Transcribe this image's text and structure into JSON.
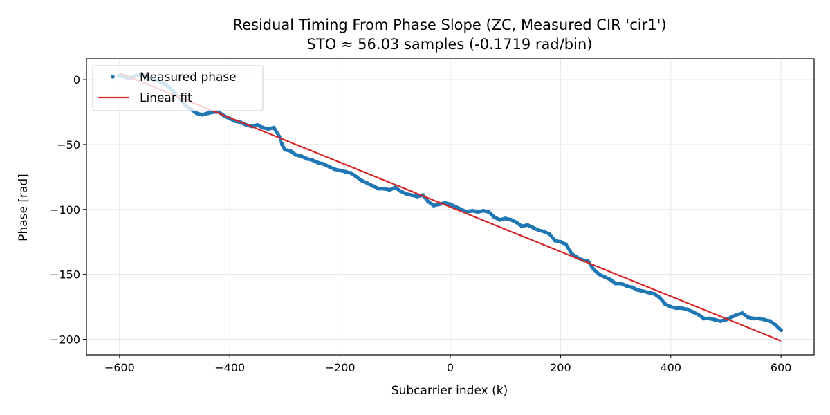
{
  "chart_data": {
    "type": "line",
    "title": "Residual Timing From Phase Slope (ZC, Measured CIR 'cir1')",
    "subtitle": "STO ≈ 56.03 samples (-0.1719 rad/bin)",
    "xlabel": "Subcarrier index (k)",
    "ylabel": "Phase [rad]",
    "xlim": [
      -660,
      660
    ],
    "ylim": [
      -212,
      16
    ],
    "xticks": [
      -600,
      -400,
      -200,
      0,
      200,
      400,
      600
    ],
    "xtick_labels": [
      "−600",
      "−400",
      "−200",
      "0",
      "200",
      "400",
      "600"
    ],
    "yticks": [
      0,
      -50,
      -100,
      -150,
      -200
    ],
    "ytick_labels": [
      "0",
      "−50",
      "−100",
      "−150",
      "−200"
    ],
    "grid": true,
    "legend_position": "top-left",
    "series": [
      {
        "name": "Measured phase",
        "style": "points",
        "color": "#1f77b4",
        "x": [
          -600,
          -590,
          -580,
          -570,
          -560,
          -550,
          -540,
          -530,
          -520,
          -510,
          -500,
          -490,
          -480,
          -470,
          -460,
          -450,
          -440,
          -430,
          -420,
          -410,
          -400,
          -390,
          -380,
          -370,
          -360,
          -350,
          -340,
          -330,
          -320,
          -310,
          -305,
          -300,
          -290,
          -280,
          -270,
          -260,
          -250,
          -240,
          -230,
          -220,
          -210,
          -200,
          -190,
          -180,
          -170,
          -160,
          -150,
          -140,
          -130,
          -120,
          -110,
          -100,
          -90,
          -80,
          -70,
          -60,
          -50,
          -40,
          -30,
          -20,
          -10,
          0,
          10,
          20,
          30,
          40,
          50,
          60,
          70,
          80,
          90,
          100,
          110,
          120,
          130,
          140,
          150,
          160,
          170,
          180,
          190,
          200,
          210,
          220,
          230,
          240,
          250,
          260,
          270,
          280,
          290,
          300,
          310,
          320,
          330,
          340,
          350,
          360,
          370,
          380,
          390,
          400,
          410,
          420,
          430,
          440,
          450,
          460,
          470,
          480,
          490,
          500,
          510,
          520,
          530,
          540,
          550,
          560,
          570,
          580,
          590,
          600
        ],
        "values": [
          3,
          2,
          1,
          3,
          4,
          2,
          0,
          -1,
          -3,
          -6,
          -10,
          -15,
          -20,
          -23,
          -26,
          -27,
          -26,
          -25,
          -25,
          -28,
          -30,
          -32,
          -33,
          -35,
          -36,
          -35,
          -37,
          -38,
          -37,
          -44,
          -50,
          -54,
          -55,
          -58,
          -59,
          -61,
          -62,
          -64,
          -65,
          -67,
          -69,
          -70,
          -71,
          -72,
          -75,
          -78,
          -80,
          -82,
          -84,
          -84,
          -85,
          -83,
          -86,
          -88,
          -89,
          -90,
          -89,
          -94,
          -97,
          -96,
          -95,
          -96,
          -98,
          -100,
          -102,
          -101,
          -102,
          -101,
          -102,
          -106,
          -108,
          -107,
          -108,
          -110,
          -113,
          -112,
          -114,
          -116,
          -117,
          -119,
          -124,
          -125,
          -127,
          -134,
          -137,
          -139,
          -140,
          -146,
          -150,
          -152,
          -154,
          -157,
          -157,
          -159,
          -160,
          -162,
          -163,
          -164,
          -165,
          -168,
          -173,
          -175,
          -176,
          -176,
          -177,
          -179,
          -181,
          -184,
          -184,
          -185,
          -186,
          -185,
          -183,
          -181,
          -180,
          -183,
          -184,
          -184,
          -185,
          -186,
          -189,
          -193
        ]
      },
      {
        "name": "Linear fit",
        "style": "line",
        "color": "#d62728",
        "x": [
          -600,
          600
        ],
        "values": [
          5,
          -201.3
        ]
      }
    ]
  }
}
